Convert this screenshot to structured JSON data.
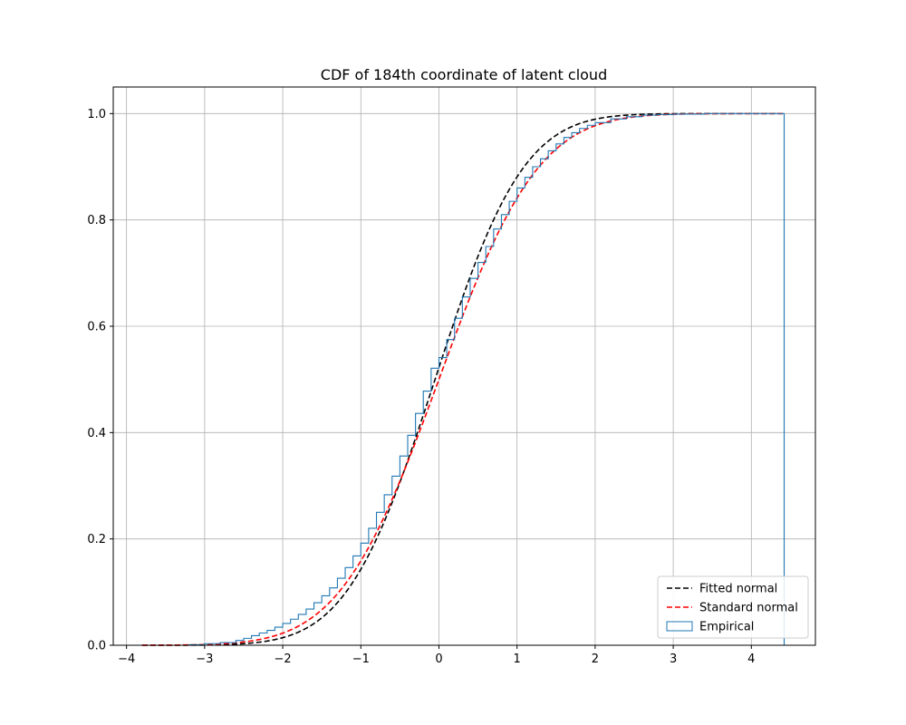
{
  "chart_data": {
    "type": "line",
    "title": "CDF of 184th coordinate of latent cloud",
    "xlabel": "",
    "ylabel": "",
    "xlim": [
      -4.17,
      4.82
    ],
    "ylim": [
      0.0,
      1.05
    ],
    "x_ticks": [
      -4,
      -3,
      -2,
      -1,
      0,
      1,
      2,
      3,
      4
    ],
    "x_tick_labels": [
      "−4",
      "−3",
      "−2",
      "−1",
      "0",
      "1",
      "2",
      "3",
      "4"
    ],
    "y_ticks": [
      0.0,
      0.2,
      0.4,
      0.6,
      0.8,
      1.0
    ],
    "y_tick_labels": [
      "0.0",
      "0.2",
      "0.4",
      "0.6",
      "0.8",
      "1.0"
    ],
    "grid": true,
    "legend_position": "lower-right",
    "series": [
      {
        "name": "Fitted normal",
        "kind": "normal_cdf",
        "mean": -0.05,
        "std": 0.89,
        "x_range": [
          -3.8,
          4.4
        ],
        "color": "#000000",
        "linestyle": "dashed"
      },
      {
        "name": "Standard normal",
        "kind": "normal_cdf",
        "mean": 0.0,
        "std": 1.0,
        "x_range": [
          -3.8,
          4.4
        ],
        "color": "#ff0000",
        "linestyle": "dashed"
      },
      {
        "name": "Empirical",
        "kind": "step_cdf",
        "color": "#1f77b4",
        "points": [
          [
            -3.6,
            0.0
          ],
          [
            -3.2,
            0.001
          ],
          [
            -3.0,
            0.003
          ],
          [
            -2.8,
            0.005
          ],
          [
            -2.6,
            0.009
          ],
          [
            -2.5,
            0.013
          ],
          [
            -2.4,
            0.018
          ],
          [
            -2.3,
            0.023
          ],
          [
            -2.2,
            0.028
          ],
          [
            -2.1,
            0.034
          ],
          [
            -2.0,
            0.041
          ],
          [
            -1.9,
            0.049
          ],
          [
            -1.8,
            0.058
          ],
          [
            -1.7,
            0.068
          ],
          [
            -1.6,
            0.08
          ],
          [
            -1.5,
            0.093
          ],
          [
            -1.4,
            0.108
          ],
          [
            -1.3,
            0.126
          ],
          [
            -1.2,
            0.146
          ],
          [
            -1.1,
            0.168
          ],
          [
            -1.0,
            0.192
          ],
          [
            -0.9,
            0.22
          ],
          [
            -0.8,
            0.25
          ],
          [
            -0.7,
            0.283
          ],
          [
            -0.6,
            0.318
          ],
          [
            -0.5,
            0.356
          ],
          [
            -0.4,
            0.395
          ],
          [
            -0.3,
            0.436
          ],
          [
            -0.2,
            0.478
          ],
          [
            -0.1,
            0.521
          ],
          [
            0.0,
            0.541
          ],
          [
            0.1,
            0.575
          ],
          [
            0.2,
            0.615
          ],
          [
            0.3,
            0.655
          ],
          [
            0.4,
            0.69
          ],
          [
            0.5,
            0.72
          ],
          [
            0.6,
            0.75
          ],
          [
            0.7,
            0.783
          ],
          [
            0.8,
            0.81
          ],
          [
            0.9,
            0.835
          ],
          [
            1.0,
            0.86
          ],
          [
            1.1,
            0.88
          ],
          [
            1.2,
            0.9
          ],
          [
            1.3,
            0.915
          ],
          [
            1.4,
            0.93
          ],
          [
            1.5,
            0.943
          ],
          [
            1.6,
            0.955
          ],
          [
            1.7,
            0.964
          ],
          [
            1.8,
            0.972
          ],
          [
            1.9,
            0.978
          ],
          [
            2.0,
            0.983
          ],
          [
            2.2,
            0.99
          ],
          [
            2.4,
            0.994
          ],
          [
            2.6,
            0.997
          ],
          [
            2.8,
            0.998
          ],
          [
            3.0,
            0.999
          ],
          [
            3.4,
            1.0
          ],
          [
            4.42,
            1.0
          ]
        ]
      }
    ]
  }
}
